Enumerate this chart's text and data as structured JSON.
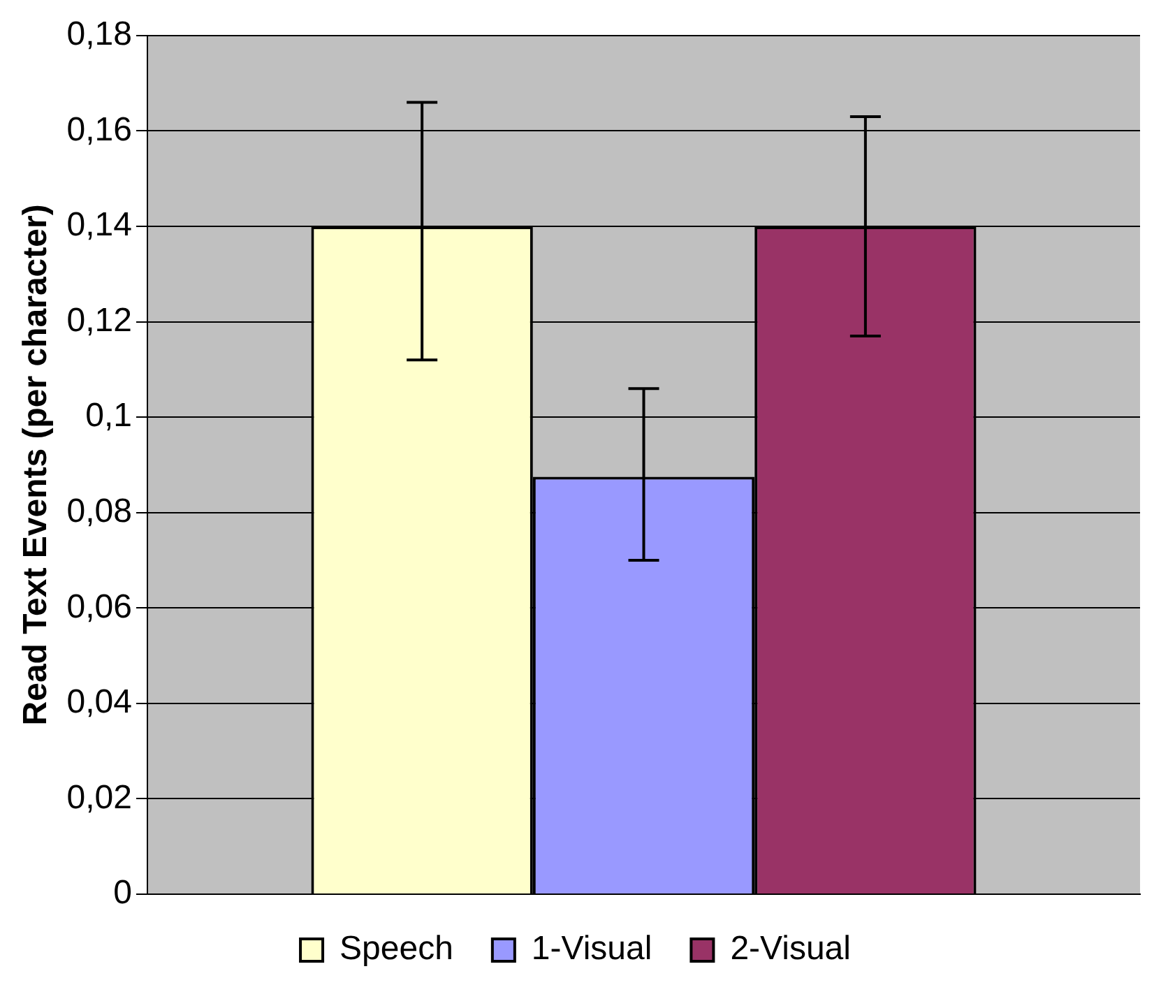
{
  "chart_data": {
    "type": "bar",
    "ylabel": "Read Text Events (per character)",
    "categories": [
      null
    ],
    "series": [
      {
        "name": "Speech",
        "color": "#ffffcc",
        "values": [
          0.14
        ],
        "errors": [
          [
            0.112,
            0.166
          ]
        ]
      },
      {
        "name": "1-Visual",
        "color": "#9999ff",
        "values": [
          0.0875
        ],
        "errors": [
          [
            0.07,
            0.106
          ]
        ]
      },
      {
        "name": "2-Visual",
        "color": "#993366",
        "values": [
          0.14
        ],
        "errors": [
          [
            0.117,
            0.163
          ]
        ]
      }
    ],
    "ylim": [
      0,
      0.18
    ],
    "yticks": [
      {
        "value": 0,
        "label": "0"
      },
      {
        "value": 0.02,
        "label": "0,02"
      },
      {
        "value": 0.04,
        "label": "0,04"
      },
      {
        "value": 0.06,
        "label": "0,06"
      },
      {
        "value": 0.08,
        "label": "0,08"
      },
      {
        "value": 0.1,
        "label": "0,1"
      },
      {
        "value": 0.12,
        "label": "0,12"
      },
      {
        "value": 0.14,
        "label": "0,14"
      },
      {
        "value": 0.16,
        "label": "0,16"
      },
      {
        "value": 0.18,
        "label": "0,18"
      }
    ],
    "grid": "y",
    "legend": "bottom"
  }
}
